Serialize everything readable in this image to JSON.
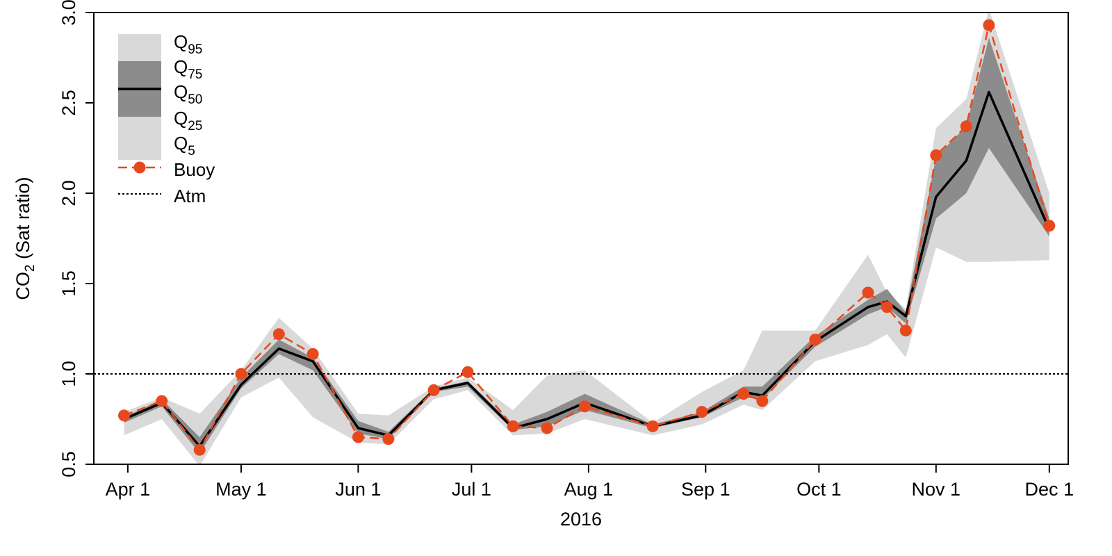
{
  "chart_data": {
    "type": "line",
    "xlabel": "2016",
    "ylabel": "CO",
    "ylabel_sub": "2",
    "ylabel_suffix": " (Sat ratio)",
    "xlim": [
      "2016-03-23",
      "2016-12-06"
    ],
    "ylim": [
      0.5,
      3.0
    ],
    "x_ticks": [
      {
        "date": "2016-04-01",
        "label": "Apr 1"
      },
      {
        "date": "2016-05-01",
        "label": "May 1"
      },
      {
        "date": "2016-06-01",
        "label": "Jun 1"
      },
      {
        "date": "2016-07-01",
        "label": "Jul 1"
      },
      {
        "date": "2016-08-01",
        "label": "Aug 1"
      },
      {
        "date": "2016-09-01",
        "label": "Sep 1"
      },
      {
        "date": "2016-10-01",
        "label": "Oct 1"
      },
      {
        "date": "2016-11-01",
        "label": "Nov 1"
      },
      {
        "date": "2016-12-01",
        "label": "Dec 1"
      }
    ],
    "y_ticks": [
      {
        "value": 0.5,
        "label": "0.5"
      },
      {
        "value": 1.0,
        "label": "1.0"
      },
      {
        "value": 1.5,
        "label": "1.5"
      },
      {
        "value": 2.0,
        "label": "2.0"
      },
      {
        "value": 2.5,
        "label": "2.5"
      },
      {
        "value": 3.0,
        "label": "3.0"
      }
    ],
    "reference_line": {
      "value": 1.0,
      "name": "Atm",
      "style": "dotted",
      "color": "#000000"
    },
    "colors": {
      "outer_band": "#d9d9d9",
      "inner_band": "#8c8c8c",
      "median": "#000000",
      "buoy": "#e8491c"
    },
    "legend": {
      "position": "top-left",
      "entries": [
        {
          "base": "Q",
          "sub": "95"
        },
        {
          "base": "Q",
          "sub": "75"
        },
        {
          "base": "Q",
          "sub": "50"
        },
        {
          "base": "Q",
          "sub": "25"
        },
        {
          "base": "Q",
          "sub": "5"
        },
        {
          "base": "Buoy",
          "sub": ""
        },
        {
          "base": "Atm",
          "sub": ""
        }
      ]
    },
    "x": [
      "2016-03-31",
      "2016-04-10",
      "2016-04-20",
      "2016-05-01",
      "2016-05-11",
      "2016-05-20",
      "2016-06-01",
      "2016-06-09",
      "2016-06-21",
      "2016-06-30",
      "2016-07-12",
      "2016-07-21",
      "2016-07-31",
      "2016-08-18",
      "2016-08-31",
      "2016-09-11",
      "2016-09-16",
      "2016-09-30",
      "2016-10-14",
      "2016-10-19",
      "2016-10-24",
      "2016-11-01",
      "2016-11-09",
      "2016-11-15",
      "2016-12-01"
    ],
    "series": [
      {
        "name": "Q95",
        "values": [
          0.79,
          0.87,
          0.78,
          1.02,
          1.31,
          1.14,
          0.78,
          0.77,
          0.93,
          0.98,
          0.8,
          0.99,
          1.02,
          0.73,
          0.9,
          1.02,
          1.24,
          1.24,
          1.66,
          1.45,
          1.36,
          2.36,
          2.52,
          3.02,
          2.0
        ]
      },
      {
        "name": "Q75",
        "values": [
          0.76,
          0.86,
          0.65,
          0.98,
          1.19,
          1.09,
          0.74,
          0.68,
          0.92,
          0.96,
          0.72,
          0.79,
          0.89,
          0.72,
          0.79,
          0.93,
          0.93,
          1.21,
          1.41,
          1.47,
          1.34,
          2.2,
          2.37,
          2.86,
          1.86
        ]
      },
      {
        "name": "Q50",
        "values": [
          0.75,
          0.84,
          0.6,
          0.94,
          1.14,
          1.07,
          0.7,
          0.66,
          0.91,
          0.95,
          0.7,
          0.75,
          0.84,
          0.71,
          0.77,
          0.9,
          0.88,
          1.18,
          1.37,
          1.4,
          1.32,
          1.98,
          2.18,
          2.56,
          1.8
        ]
      },
      {
        "name": "Q25",
        "values": [
          0.73,
          0.82,
          0.56,
          0.92,
          1.11,
          1.02,
          0.67,
          0.64,
          0.9,
          0.93,
          0.69,
          0.71,
          0.8,
          0.7,
          0.76,
          0.87,
          0.86,
          1.15,
          1.33,
          1.37,
          1.28,
          1.86,
          2.0,
          2.25,
          1.76
        ]
      },
      {
        "name": "Q5",
        "values": [
          0.66,
          0.75,
          0.49,
          0.87,
          0.98,
          0.76,
          0.62,
          0.61,
          0.86,
          0.91,
          0.66,
          0.67,
          0.75,
          0.66,
          0.72,
          0.83,
          0.8,
          1.07,
          1.16,
          1.22,
          1.09,
          1.7,
          1.62,
          1.62,
          1.63
        ]
      },
      {
        "name": "Buoy",
        "values": [
          0.77,
          0.85,
          0.58,
          1.0,
          1.22,
          1.11,
          0.65,
          0.64,
          0.91,
          1.01,
          0.71,
          0.7,
          0.82,
          0.71,
          0.79,
          0.89,
          0.85,
          1.19,
          1.45,
          1.37,
          1.24,
          2.21,
          2.37,
          2.93,
          1.82
        ]
      }
    ]
  }
}
